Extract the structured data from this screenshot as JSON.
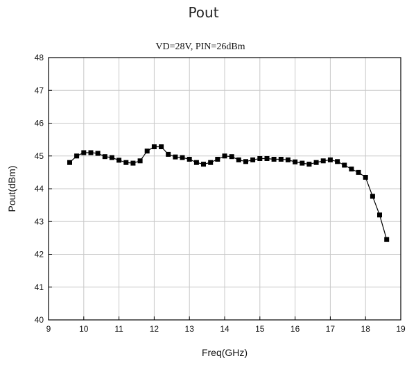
{
  "page": {
    "title": "Pout"
  },
  "chart_data": {
    "type": "line",
    "title": "Pout",
    "subtitle": "VD=28V, PIN=26dBm",
    "xlabel": "Freq(GHz)",
    "ylabel": "Pout(dBm)",
    "xlim": [
      9,
      19
    ],
    "ylim": [
      40,
      48
    ],
    "x_ticks": [
      9,
      10,
      11,
      12,
      13,
      14,
      15,
      16,
      17,
      18,
      19
    ],
    "y_ticks": [
      40,
      41,
      42,
      43,
      44,
      45,
      46,
      47,
      48
    ],
    "grid": true,
    "marker": "square",
    "line_color": "#000000",
    "series": [
      {
        "name": "",
        "x": [
          9.6,
          9.8,
          10.0,
          10.2,
          10.4,
          10.6,
          10.8,
          11.0,
          11.2,
          11.4,
          11.6,
          11.8,
          12.0,
          12.2,
          12.4,
          12.6,
          12.8,
          13.0,
          13.2,
          13.4,
          13.6,
          13.8,
          14.0,
          14.2,
          14.4,
          14.6,
          14.8,
          15.0,
          15.2,
          15.4,
          15.6,
          15.8,
          16.0,
          16.2,
          16.4,
          16.6,
          16.8,
          17.0,
          17.2,
          17.4,
          17.6,
          17.8,
          18.0,
          18.2,
          18.4,
          18.6
        ],
        "y": [
          44.8,
          45.0,
          45.1,
          45.1,
          45.08,
          44.98,
          44.95,
          44.87,
          44.8,
          44.78,
          44.85,
          45.15,
          45.28,
          45.28,
          45.05,
          44.97,
          44.95,
          44.9,
          44.8,
          44.75,
          44.8,
          44.9,
          45.0,
          44.98,
          44.88,
          44.83,
          44.88,
          44.92,
          44.92,
          44.9,
          44.9,
          44.88,
          44.82,
          44.78,
          44.75,
          44.8,
          44.85,
          44.88,
          44.83,
          44.72,
          44.6,
          44.5,
          44.35,
          43.77,
          43.2,
          42.45
        ]
      }
    ]
  }
}
